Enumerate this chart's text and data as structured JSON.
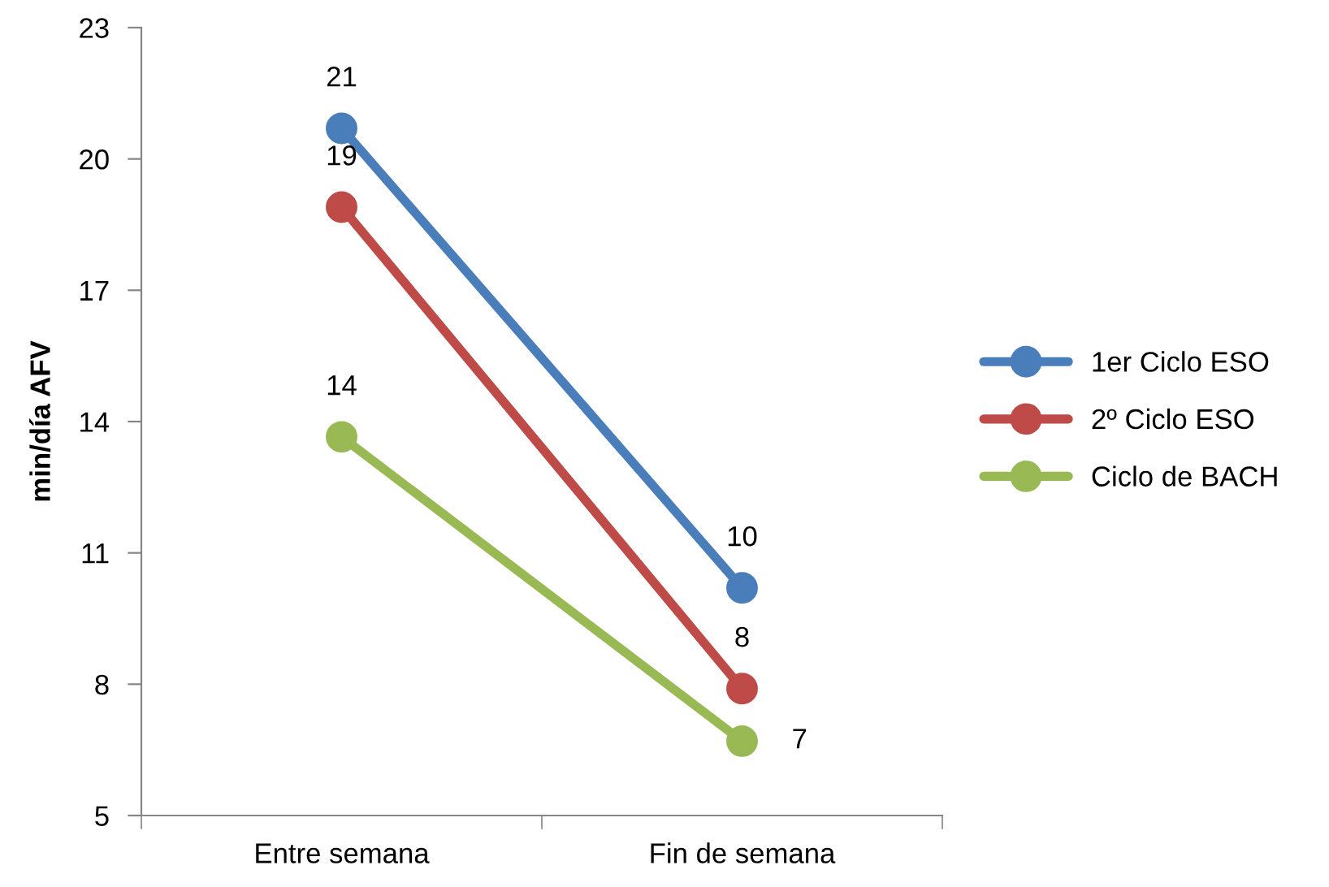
{
  "chart_data": {
    "type": "line",
    "ylabel": "min/día AFV",
    "categories": [
      "Entre semana",
      "Fin de semana"
    ],
    "series": [
      {
        "name": "1er Ciclo ESO",
        "color": "#4a7ebb",
        "values": [
          20.7,
          10.2
        ],
        "value_labels": [
          "21",
          "10"
        ]
      },
      {
        "name": "2º Ciclo ESO",
        "color": "#be4b48",
        "values": [
          18.9,
          7.9
        ],
        "value_labels": [
          "19",
          "8"
        ]
      },
      {
        "name": "Ciclo de BACH",
        "color": "#98b954",
        "values": [
          13.65,
          6.7
        ],
        "value_labels": [
          "14",
          "7"
        ]
      }
    ],
    "ylim": [
      5,
      23
    ],
    "yticks": [
      5,
      8,
      11,
      14,
      17,
      20,
      23
    ],
    "grid": false,
    "legend": "right",
    "marker": "circle",
    "line_style": "solid"
  }
}
